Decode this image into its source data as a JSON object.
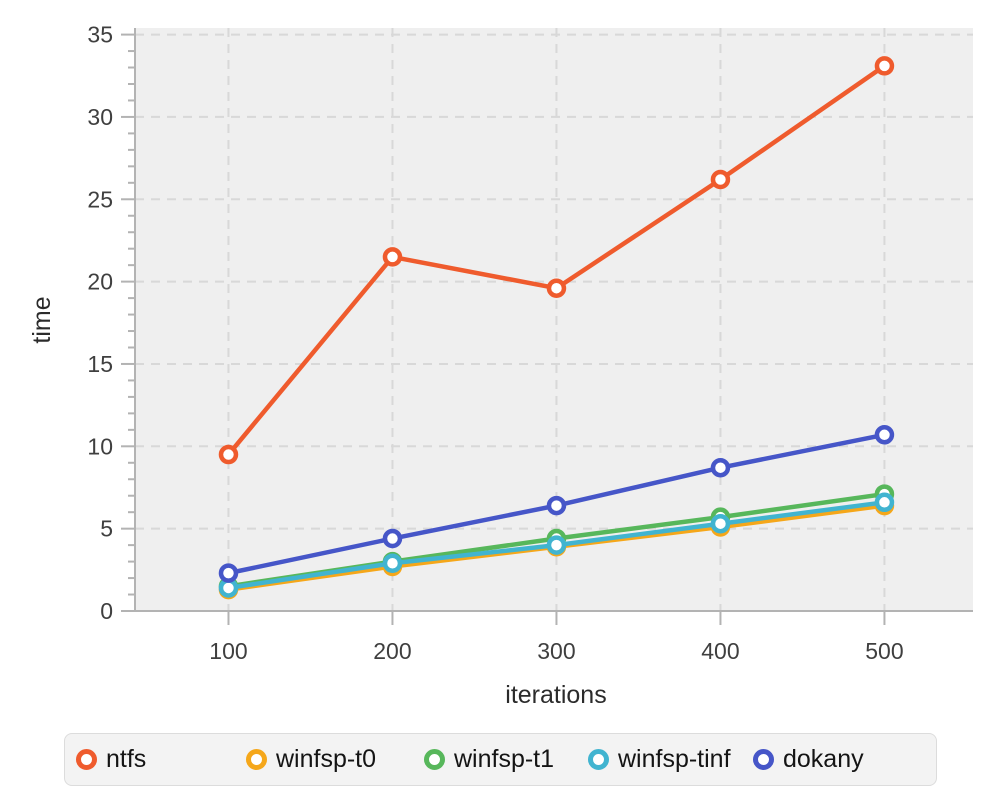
{
  "chart_data": {
    "type": "line",
    "title": "",
    "xlabel": "iterations",
    "ylabel": "time",
    "x": [
      100,
      200,
      300,
      400,
      500
    ],
    "series": [
      {
        "name": "ntfs",
        "color": "#ef5b2d",
        "values": [
          9.5,
          21.5,
          19.6,
          26.2,
          33.1
        ]
      },
      {
        "name": "winfsp-t0",
        "color": "#f5a71a",
        "values": [
          1.3,
          2.7,
          3.9,
          5.1,
          6.4
        ]
      },
      {
        "name": "winfsp-t1",
        "color": "#57b75b",
        "values": [
          1.5,
          3.0,
          4.4,
          5.7,
          7.1
        ]
      },
      {
        "name": "winfsp-tinf",
        "color": "#41b4d0",
        "values": [
          1.4,
          2.9,
          4.0,
          5.3,
          6.6
        ]
      },
      {
        "name": "dokany",
        "color": "#4656c8",
        "values": [
          2.3,
          4.4,
          6.4,
          8.7,
          10.7
        ]
      }
    ],
    "y_major_ticks": [
      0,
      5,
      10,
      15,
      20,
      25,
      30,
      35
    ],
    "y_minor_step": 1,
    "x_ticks": [
      100,
      200,
      300,
      400,
      500
    ],
    "ylim": [
      0,
      35.4
    ],
    "xlim": [
      43,
      554
    ],
    "grid": "dashed",
    "legend_position": "bottom",
    "marker": "open-circle"
  },
  "style": {
    "panel_bg": "#efefef",
    "grid_color": "#d8d8d8",
    "axis_color": "#b3b3b3",
    "tick_label_color": "#3f3f3f",
    "axis_title_color": "#2b2b2b",
    "legend_bg": "#f3f3f3",
    "legend_border": "#dcdcdc",
    "legend_text_color": "#141414",
    "page_bg": "#ffffff"
  }
}
